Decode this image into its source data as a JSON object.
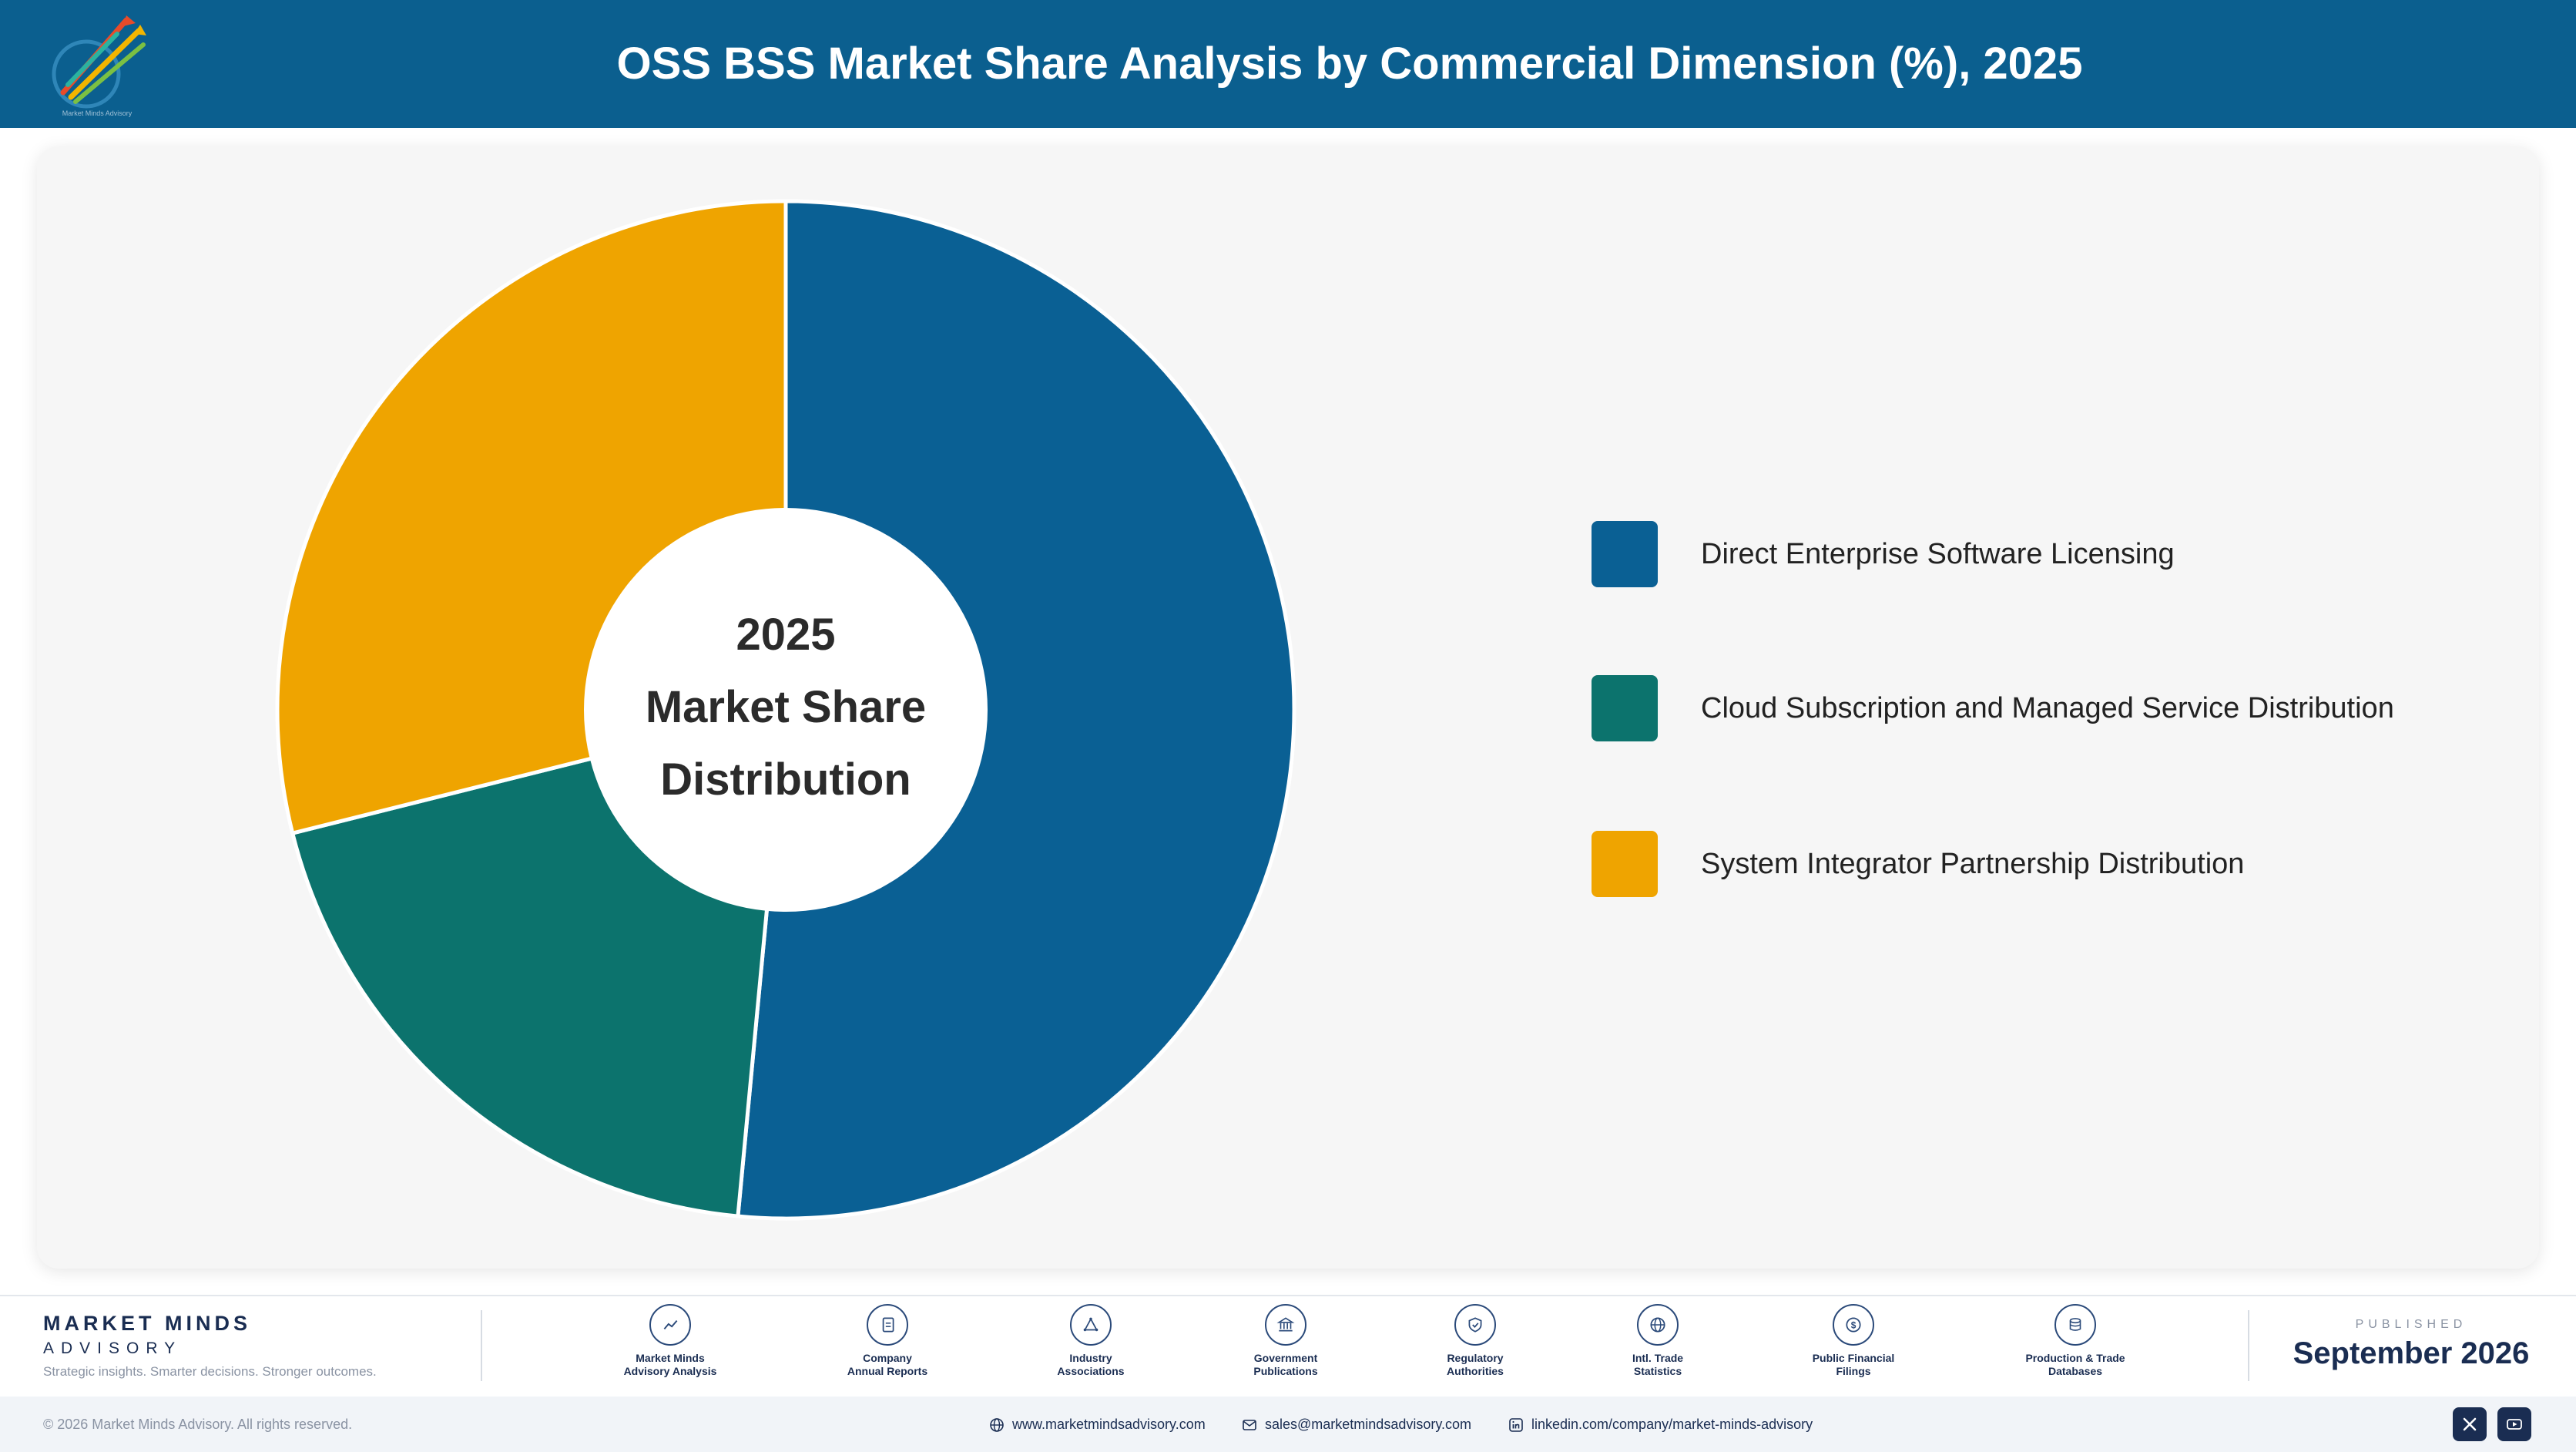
{
  "header": {
    "title": "OSS BSS Market Share Analysis by Commercial Dimension (%), 2025",
    "logo_caption": "Market Minds Advisory"
  },
  "chart_data": {
    "type": "pie",
    "title": "OSS BSS Market Share Analysis by Commercial Dimension (%), 2025",
    "center_text": [
      "2025",
      "Market Share",
      "Distribution"
    ],
    "categories": [
      "Direct Enterprise Software Licensing",
      "Cloud Subscription and Managed Service Distribution",
      "System Integrator Partnership Distribution"
    ],
    "values": [
      51.5,
      19.6,
      28.9
    ],
    "colors": [
      "#0a6094",
      "#0c736d",
      "#efa400"
    ],
    "legend_position": "right"
  },
  "footer": {
    "brand_name": "MARKET MINDS",
    "brand_sub": "ADVISORY",
    "tagline": "Strategic insights. Smarter decisions. Stronger outcomes.",
    "sources": [
      {
        "label": "Market Minds\nAdvisory Analysis",
        "icon": "trend-line-icon"
      },
      {
        "label": "Company\nAnnual Reports",
        "icon": "document-icon"
      },
      {
        "label": "Industry\nAssociations",
        "icon": "network-icon"
      },
      {
        "label": "Government\nPublications",
        "icon": "government-building-icon"
      },
      {
        "label": "Regulatory\nAuthorities",
        "icon": "shield-check-icon"
      },
      {
        "label": "Intl. Trade\nStatistics",
        "icon": "globe-icon"
      },
      {
        "label": "Public Financial\nFilings",
        "icon": "dollar-coin-icon"
      },
      {
        "label": "Production & Trade\nDatabases",
        "icon": "database-icon"
      }
    ],
    "published_label": "PUBLISHED",
    "published_date": "September 2026",
    "copyright": "© 2026 Market Minds Advisory. All rights reserved.",
    "website": "www.marketmindsadvisory.com",
    "email": "sales@marketmindsadvisory.com",
    "linkedin": "linkedin.com/company/market-minds-advisory"
  }
}
